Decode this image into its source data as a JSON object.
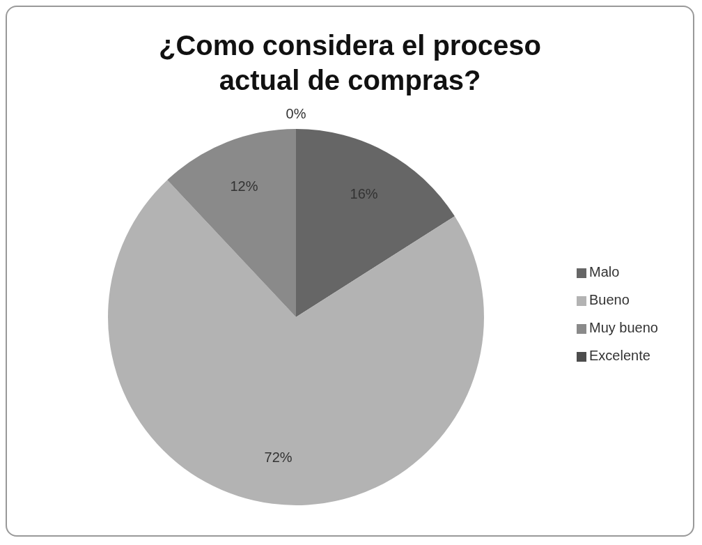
{
  "chart_data": {
    "type": "pie",
    "title": "¿Como considera el proceso actual de compras?",
    "categories": [
      "Malo",
      "Bueno",
      "Muy bueno",
      "Excelente"
    ],
    "values": [
      16,
      72,
      12,
      0
    ],
    "colors": [
      "#666666",
      "#b3b3b3",
      "#8a8a8a",
      "#4d4d4d"
    ],
    "value_labels": [
      "16%",
      "72%",
      "12%",
      "0%"
    ],
    "legend": "right"
  }
}
